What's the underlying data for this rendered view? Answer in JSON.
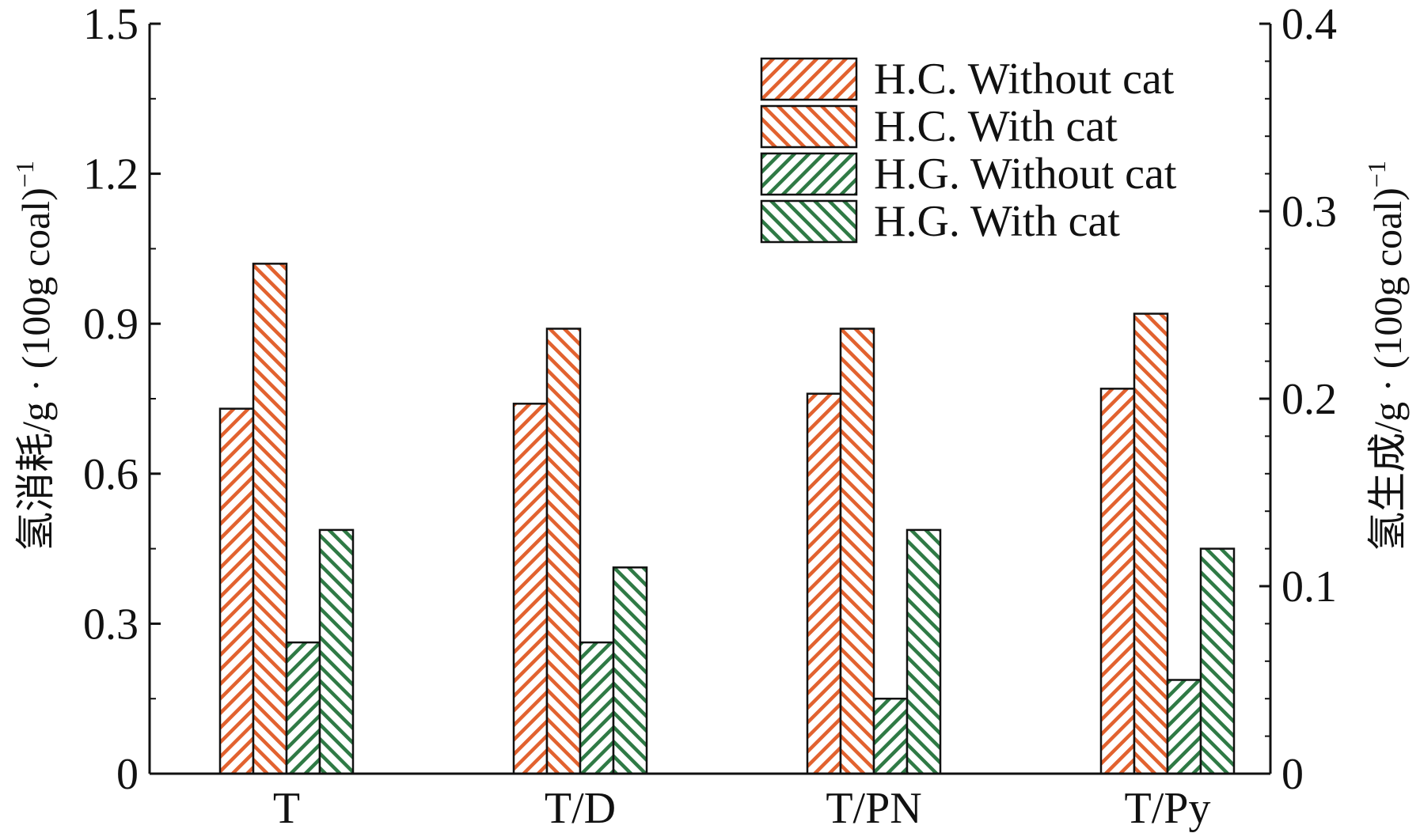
{
  "chart_data": {
    "type": "bar",
    "categories": [
      "T",
      "T/D",
      "T/PN",
      "T/Py"
    ],
    "series": [
      {
        "name": "H.C. Without cat",
        "axis": "left",
        "color": "#e2622f",
        "pattern": "hatch-right",
        "values": [
          0.73,
          0.74,
          0.76,
          0.77
        ]
      },
      {
        "name": "H.C. With cat",
        "axis": "left",
        "color": "#e2622f",
        "pattern": "hatch-left",
        "values": [
          1.02,
          0.89,
          0.89,
          0.92
        ]
      },
      {
        "name": "H.G. Without cat",
        "axis": "right",
        "color": "#2f7a45",
        "pattern": "hatch-right",
        "values": [
          0.07,
          0.07,
          0.04,
          0.05
        ]
      },
      {
        "name": "H.G. With cat",
        "axis": "right",
        "color": "#2f7a45",
        "pattern": "hatch-left",
        "values": [
          0.13,
          0.11,
          0.13,
          0.12
        ]
      }
    ],
    "y_left": {
      "label": "氢消耗/g · (100g coal)",
      "label_sup": "−1",
      "range": [
        0,
        1.5
      ],
      "ticks": [
        "0",
        "0.3",
        "0.6",
        "0.9",
        "1.2",
        "1.5"
      ]
    },
    "y_right": {
      "label": "氢生成/g · (100g coal)",
      "label_sup": "−1",
      "range": [
        0,
        0.4
      ],
      "ticks": [
        "0",
        "0.1",
        "0.2",
        "0.3",
        "0.4"
      ]
    },
    "legend_position": "top-right",
    "grid": false
  }
}
